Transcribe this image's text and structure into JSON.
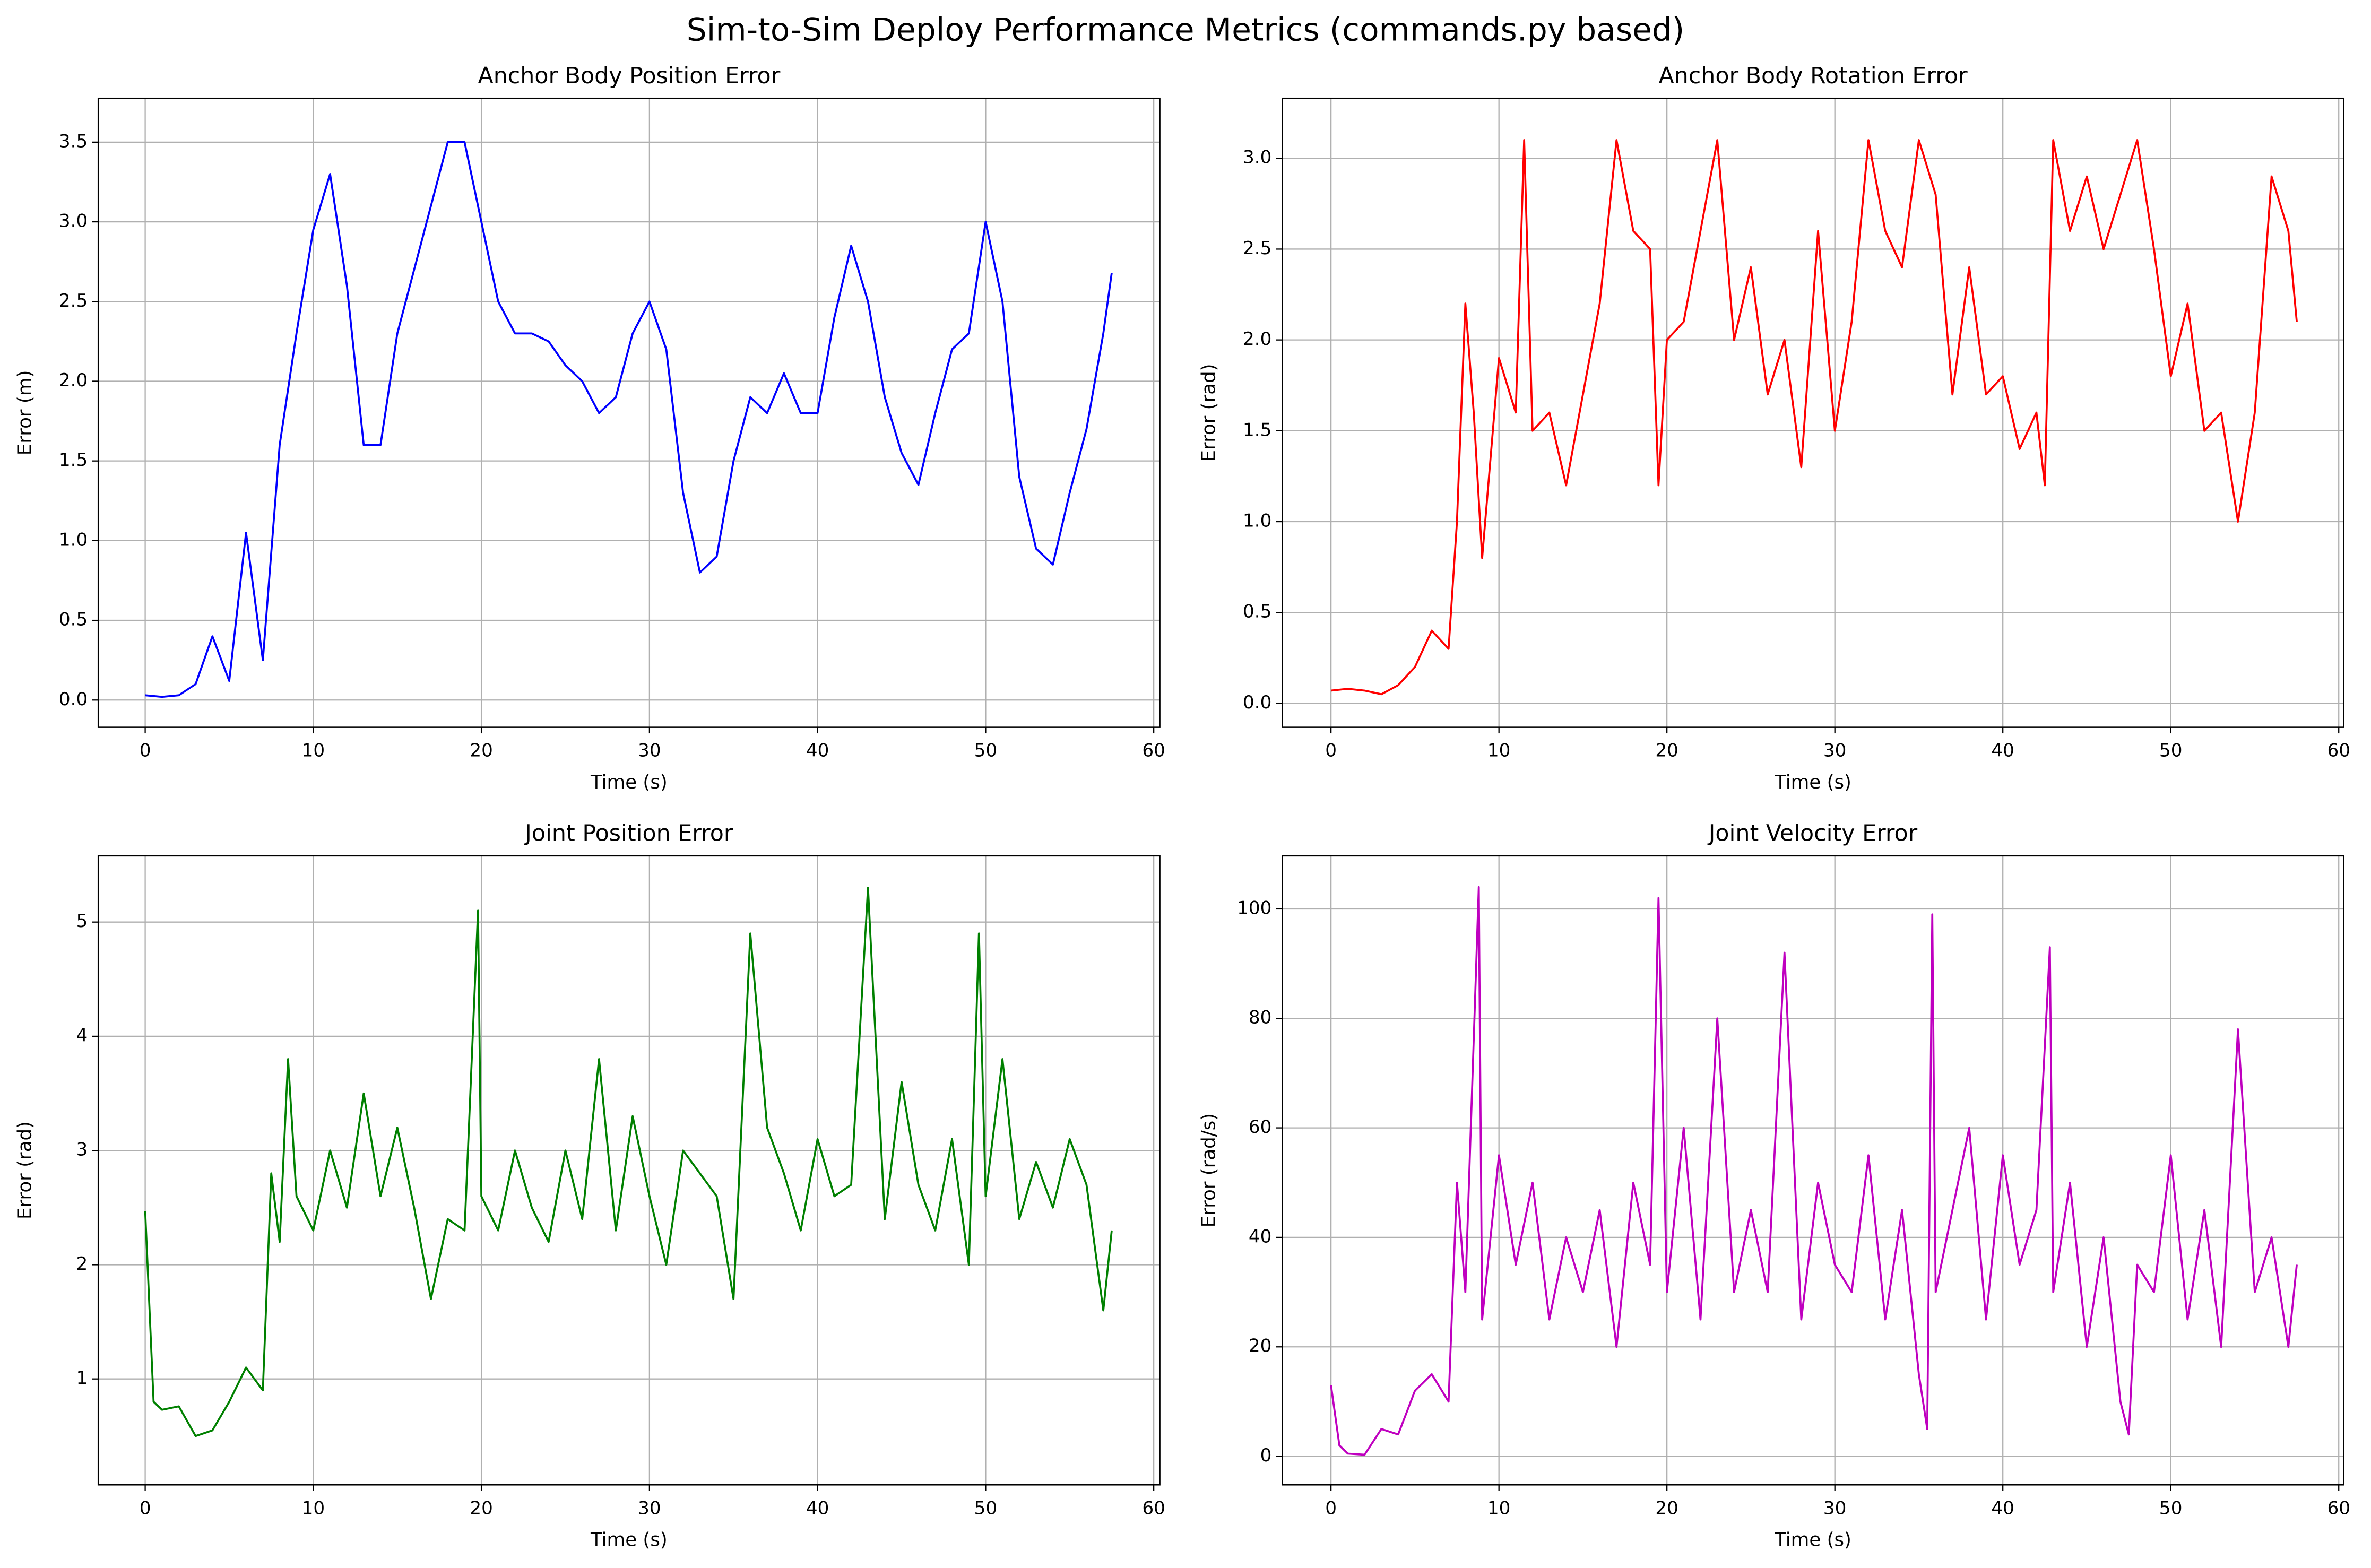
{
  "title": "Sim-to-Sim Deploy Performance Metrics (commands.py based)",
  "chart_data": [
    {
      "type": "line",
      "title": "Anchor Body Position Error",
      "xlabel": "Time (s)",
      "ylabel": "Error (m)",
      "color": "#0000ff",
      "grid": true,
      "xlim": [
        -2.79,
        60.36
      ],
      "xticks": [
        0,
        10,
        20,
        30,
        40,
        50,
        60
      ],
      "ylim": [
        -0.171,
        3.775
      ],
      "yticks": [
        {
          "value": 0,
          "label": "0.0"
        },
        0.5,
        {
          "value": 1,
          "label": "1.0"
        },
        1.5,
        {
          "value": 2,
          "label": "2.0"
        },
        2.5,
        {
          "value": 3,
          "label": "3.0"
        },
        3.5
      ],
      "x": [
        0,
        1,
        2,
        3,
        4,
        5,
        6,
        7,
        8,
        9,
        10,
        11,
        12,
        13,
        14,
        15,
        16,
        17,
        18,
        19,
        20,
        21,
        22,
        23,
        24,
        25,
        26,
        27,
        28,
        29,
        30,
        31,
        32,
        33,
        34,
        35,
        36,
        37,
        38,
        39,
        40,
        41,
        42,
        43,
        44,
        45,
        46,
        47,
        48,
        49,
        50,
        51,
        52,
        53,
        54,
        55,
        56,
        57,
        57.5
      ],
      "values": [
        0.03,
        0.02,
        0.03,
        0.1,
        0.4,
        0.12,
        1.05,
        0.25,
        1.6,
        2.3,
        2.95,
        3.3,
        2.6,
        1.6,
        1.6,
        2.3,
        2.7,
        3.1,
        3.5,
        3.5,
        3.0,
        2.5,
        2.3,
        2.3,
        2.25,
        2.1,
        2.0,
        1.8,
        1.9,
        2.3,
        2.5,
        2.2,
        1.3,
        0.8,
        0.9,
        1.5,
        1.9,
        1.8,
        2.05,
        1.8,
        1.8,
        2.4,
        2.85,
        2.5,
        1.9,
        1.55,
        1.35,
        1.8,
        2.2,
        2.3,
        3.0,
        2.5,
        1.4,
        0.95,
        0.85,
        1.3,
        1.7,
        2.3,
        2.68
      ]
    },
    {
      "type": "line",
      "title": "Anchor Body Rotation Error",
      "xlabel": "Time (s)",
      "ylabel": "Error (rad)",
      "color": "#ff0000",
      "grid": true,
      "xlim": [
        -2.9,
        60.3
      ],
      "xticks": [
        0,
        10,
        20,
        30,
        40,
        50,
        60
      ],
      "ylim": [
        -0.132,
        3.33
      ],
      "yticks": [
        {
          "value": 0,
          "label": "0.0"
        },
        0.5,
        {
          "value": 1,
          "label": "1.0"
        },
        1.5,
        {
          "value": 2,
          "label": "2.0"
        },
        2.5,
        {
          "value": 3,
          "label": "3.0"
        }
      ],
      "x": [
        0,
        1,
        2,
        3,
        4,
        5,
        6,
        7,
        7.5,
        8,
        8.5,
        9,
        10,
        11,
        11.5,
        12,
        13,
        14,
        15,
        16,
        17,
        18,
        19,
        19.5,
        20,
        21,
        22,
        23,
        24,
        25,
        26,
        27,
        28,
        29,
        30,
        31,
        32,
        33,
        34,
        35,
        36,
        37,
        38,
        39,
        40,
        41,
        42,
        42.5,
        43,
        44,
        45,
        46,
        47,
        48,
        49,
        50,
        51,
        52,
        53,
        54,
        55,
        56,
        57,
        57.5
      ],
      "values": [
        0.07,
        0.08,
        0.07,
        0.05,
        0.1,
        0.2,
        0.4,
        0.3,
        1.0,
        2.2,
        1.6,
        0.8,
        1.9,
        1.6,
        3.1,
        1.5,
        1.6,
        1.2,
        1.7,
        2.2,
        3.1,
        2.6,
        2.5,
        1.2,
        2.0,
        2.1,
        2.6,
        3.1,
        2.0,
        2.4,
        1.7,
        2.0,
        1.3,
        2.6,
        1.5,
        2.1,
        3.1,
        2.6,
        2.4,
        3.1,
        2.8,
        1.7,
        2.4,
        1.7,
        1.8,
        1.4,
        1.6,
        1.2,
        3.1,
        2.6,
        2.9,
        2.5,
        2.8,
        3.1,
        2.5,
        1.8,
        2.2,
        1.5,
        1.6,
        1.0,
        1.6,
        2.9,
        2.6,
        2.1
      ]
    },
    {
      "type": "line",
      "title": "Joint Position Error",
      "xlabel": "Time (s)",
      "ylabel": "Error (rad)",
      "color": "#008000",
      "grid": true,
      "xlim": [
        -2.79,
        60.36
      ],
      "xticks": [
        0,
        10,
        20,
        30,
        40,
        50,
        60
      ],
      "ylim": [
        0.073,
        5.58
      ],
      "yticks": [
        1,
        2,
        3,
        4,
        5
      ],
      "x": [
        0,
        0.5,
        1,
        2,
        3,
        4,
        5,
        6,
        7,
        7.5,
        8,
        8.5,
        9,
        10,
        11,
        12,
        13,
        14,
        15,
        16,
        17,
        18,
        19,
        19.8,
        20,
        21,
        22,
        23,
        24,
        25,
        26,
        27,
        28,
        29,
        30,
        31,
        32,
        33,
        34,
        35,
        36,
        37,
        38,
        39,
        40,
        41,
        42,
        43,
        44,
        45,
        46,
        47,
        48,
        49,
        49.6,
        50,
        51,
        52,
        53,
        54,
        55,
        56,
        57,
        57.5
      ],
      "values": [
        2.47,
        0.8,
        0.73,
        0.76,
        0.5,
        0.55,
        0.8,
        1.1,
        0.9,
        2.8,
        2.2,
        3.8,
        2.6,
        2.3,
        3.0,
        2.5,
        3.5,
        2.6,
        3.2,
        2.5,
        1.7,
        2.4,
        2.3,
        5.1,
        2.6,
        2.3,
        3.0,
        2.5,
        2.2,
        3.0,
        2.4,
        3.8,
        2.3,
        3.3,
        2.6,
        2.0,
        3.0,
        2.8,
        2.6,
        1.7,
        4.9,
        3.2,
        2.8,
        2.3,
        3.1,
        2.6,
        2.7,
        5.3,
        2.4,
        3.6,
        2.7,
        2.3,
        3.1,
        2.0,
        4.9,
        2.6,
        3.8,
        2.4,
        2.9,
        2.5,
        3.1,
        2.7,
        1.6,
        2.3
      ]
    },
    {
      "type": "line",
      "title": "Joint Velocity Error",
      "xlabel": "Time (s)",
      "ylabel": "Error (rad/s)",
      "color": "#bf00bf",
      "grid": true,
      "xlim": [
        -2.9,
        60.3
      ],
      "xticks": [
        0,
        10,
        20,
        30,
        40,
        50,
        60
      ],
      "ylim": [
        -5.2,
        109.7
      ],
      "yticks": [
        0,
        20,
        40,
        60,
        80,
        100
      ],
      "x": [
        0,
        0.5,
        1,
        2,
        3,
        4,
        5,
        6,
        7,
        7.5,
        8,
        8.8,
        9,
        10,
        11,
        12,
        13,
        14,
        15,
        16,
        17,
        18,
        19,
        19.5,
        20,
        21,
        22,
        23,
        24,
        25,
        26,
        27,
        28,
        29,
        30,
        31,
        32,
        33,
        34,
        35,
        35.5,
        35.8,
        36,
        37,
        38,
        39,
        40,
        41,
        42,
        42.8,
        43,
        44,
        45,
        46,
        47,
        47.5,
        48,
        49,
        50,
        51,
        52,
        53,
        54,
        55,
        56,
        57,
        57.5
      ],
      "values": [
        13,
        2,
        0.5,
        0.3,
        5,
        4,
        12,
        15,
        10,
        50,
        30,
        104,
        25,
        55,
        35,
        50,
        25,
        40,
        30,
        45,
        20,
        50,
        35,
        102,
        30,
        60,
        25,
        80,
        30,
        45,
        30,
        92,
        25,
        50,
        35,
        30,
        55,
        25,
        45,
        15,
        5,
        99,
        30,
        45,
        60,
        25,
        55,
        35,
        45,
        93,
        30,
        50,
        20,
        40,
        10,
        4,
        35,
        30,
        55,
        25,
        45,
        20,
        78,
        30,
        40,
        20,
        35
      ]
    }
  ]
}
